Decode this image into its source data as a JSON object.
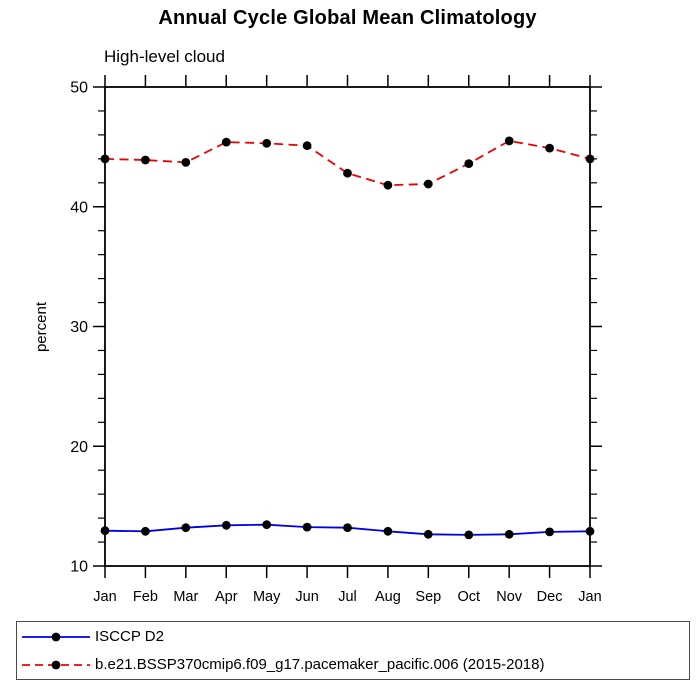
{
  "chart_data": {
    "type": "line",
    "title": "Annual Cycle Global Mean Climatology",
    "subtitle": "High-level cloud",
    "xlabel": "",
    "ylabel": "percent",
    "categories": [
      "Jan",
      "Feb",
      "Mar",
      "Apr",
      "May",
      "Jun",
      "Jul",
      "Aug",
      "Sep",
      "Oct",
      "Nov",
      "Dec",
      "Jan"
    ],
    "series": [
      {
        "name": "ISCCP D2",
        "color": "#0000ee",
        "line_style": "solid",
        "marker": "filled-circle",
        "marker_color": "#000000",
        "values": [
          12.95,
          12.9,
          13.2,
          13.4,
          13.45,
          13.25,
          13.2,
          12.9,
          12.65,
          12.6,
          12.65,
          12.85,
          12.9
        ]
      },
      {
        "name": "b.e21.BSSP370cmip6.f09_g17.pacemaker_pacific.006 (2015-2018)",
        "color": "#ee0000",
        "line_style": "dashed",
        "marker": "filled-circle",
        "marker_color": "#000000",
        "values": [
          44.0,
          43.9,
          43.7,
          45.4,
          45.3,
          45.1,
          42.8,
          41.8,
          41.9,
          43.6,
          45.5,
          44.9,
          44.0
        ]
      }
    ],
    "ylim": [
      10,
      50
    ],
    "yticks_major": [
      10,
      20,
      30,
      40,
      50
    ],
    "ytick_minor_step": 2,
    "grid": false,
    "frame": "box-with-outward-ticks",
    "legend_position": "bottom-left-box"
  }
}
